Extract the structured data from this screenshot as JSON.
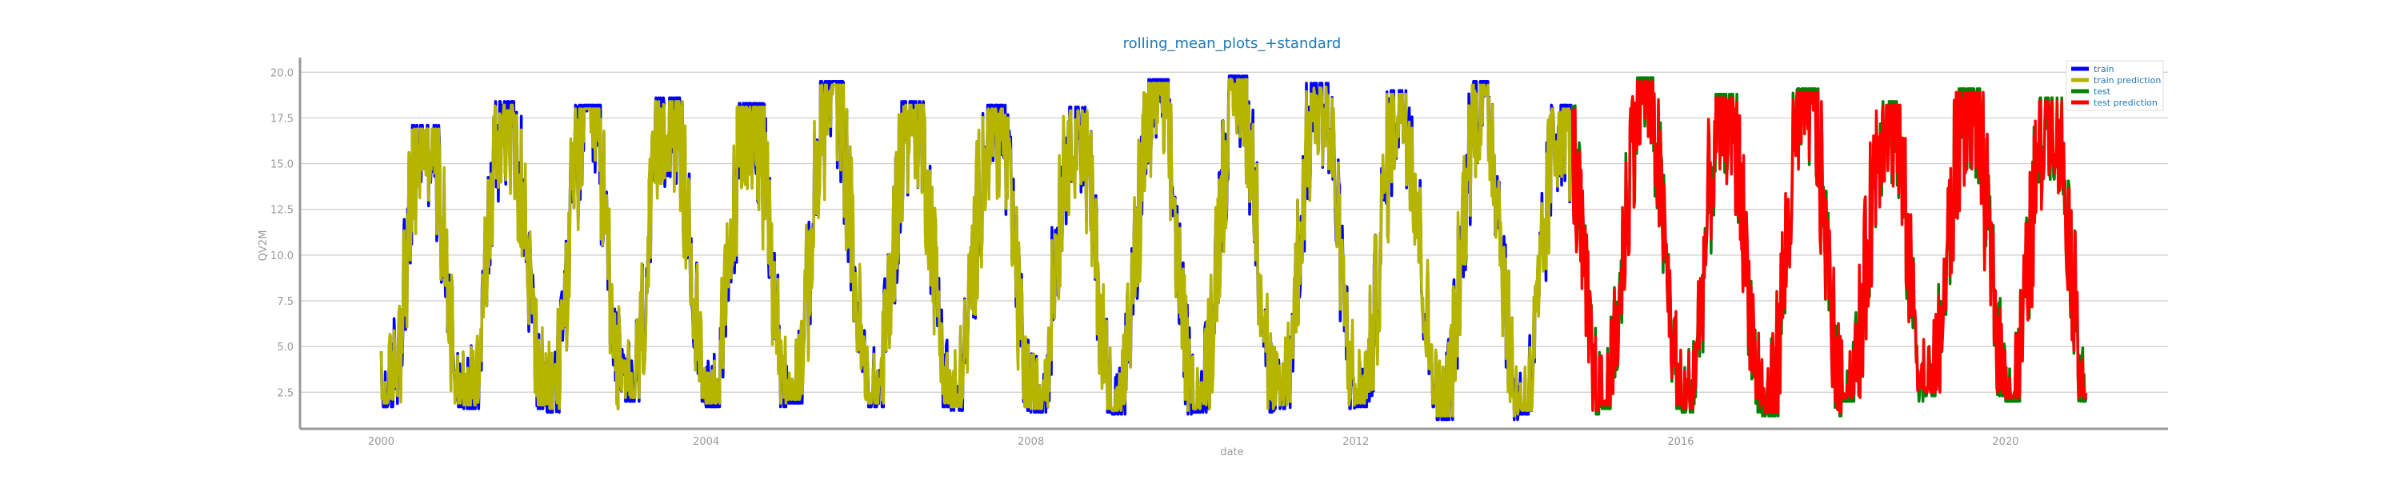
{
  "chart_data": {
    "type": "line",
    "title": "rolling_mean_plots_+standard",
    "xlabel": "date",
    "ylabel": "QV2M",
    "x_ticks": [
      "2000",
      "2004",
      "2008",
      "2012",
      "2016",
      "2020"
    ],
    "y_ticks": [
      "2.5",
      "5.0",
      "7.5",
      "10.0",
      "12.5",
      "15.0",
      "17.5",
      "20.0"
    ],
    "xlim": [
      "1999-01-01",
      "2022-01-01"
    ],
    "ylim": [
      0.5,
      20.8
    ],
    "grid": "horizontal",
    "legend_position": "top-right",
    "seasonal_peaks": [
      {
        "year": 2000,
        "max": 17.1,
        "min": 1.7
      },
      {
        "year": 2001,
        "max": 18.4,
        "min": 1.6
      },
      {
        "year": 2002,
        "max": 18.2,
        "min": 1.4
      },
      {
        "year": 2003,
        "max": 18.6,
        "min": 2.0
      },
      {
        "year": 2004,
        "max": 18.3,
        "min": 1.7
      },
      {
        "year": 2005,
        "max": 19.5,
        "min": 1.9
      },
      {
        "year": 2006,
        "max": 18.4,
        "min": 1.7
      },
      {
        "year": 2007,
        "max": 18.2,
        "min": 1.5
      },
      {
        "year": 2008,
        "max": 18.1,
        "min": 1.4
      },
      {
        "year": 2009,
        "max": 19.6,
        "min": 1.3
      },
      {
        "year": 2010,
        "max": 19.8,
        "min": 1.4
      },
      {
        "year": 2011,
        "max": 19.4,
        "min": 1.6
      },
      {
        "year": 2012,
        "max": 19.0,
        "min": 1.7
      },
      {
        "year": 2013,
        "max": 19.5,
        "min": 1.0
      },
      {
        "year": 2014,
        "max": 18.2,
        "min": 1.3
      },
      {
        "year": 2015,
        "max": 19.7,
        "min": 1.6
      },
      {
        "year": 2016,
        "max": 18.8,
        "min": 1.4
      },
      {
        "year": 2017,
        "max": 19.1,
        "min": 1.2
      },
      {
        "year": 2018,
        "max": 18.4,
        "min": 2.0
      },
      {
        "year": 2019,
        "max": 19.1,
        "min": 2.3
      },
      {
        "year": 2020,
        "max": 18.6,
        "min": 2.0
      }
    ],
    "train_range": [
      "2000-01-01",
      "2014-09-01"
    ],
    "test_range": [
      "2014-09-01",
      "2020-12-31"
    ],
    "series": [
      {
        "name": "train",
        "color": "#0000ff",
        "role": "train",
        "style": "solid"
      },
      {
        "name": "train prediction",
        "color": "#b5b500",
        "role": "train",
        "style": "solid"
      },
      {
        "name": "test",
        "color": "#008000",
        "role": "test",
        "style": "solid"
      },
      {
        "name": "test prediction",
        "color": "#ff0000",
        "role": "test",
        "style": "solid"
      }
    ],
    "colors": {
      "text": "#1f77b4",
      "tick_text": "#999999",
      "grid": "#cccccc",
      "axis": "#999999"
    }
  }
}
